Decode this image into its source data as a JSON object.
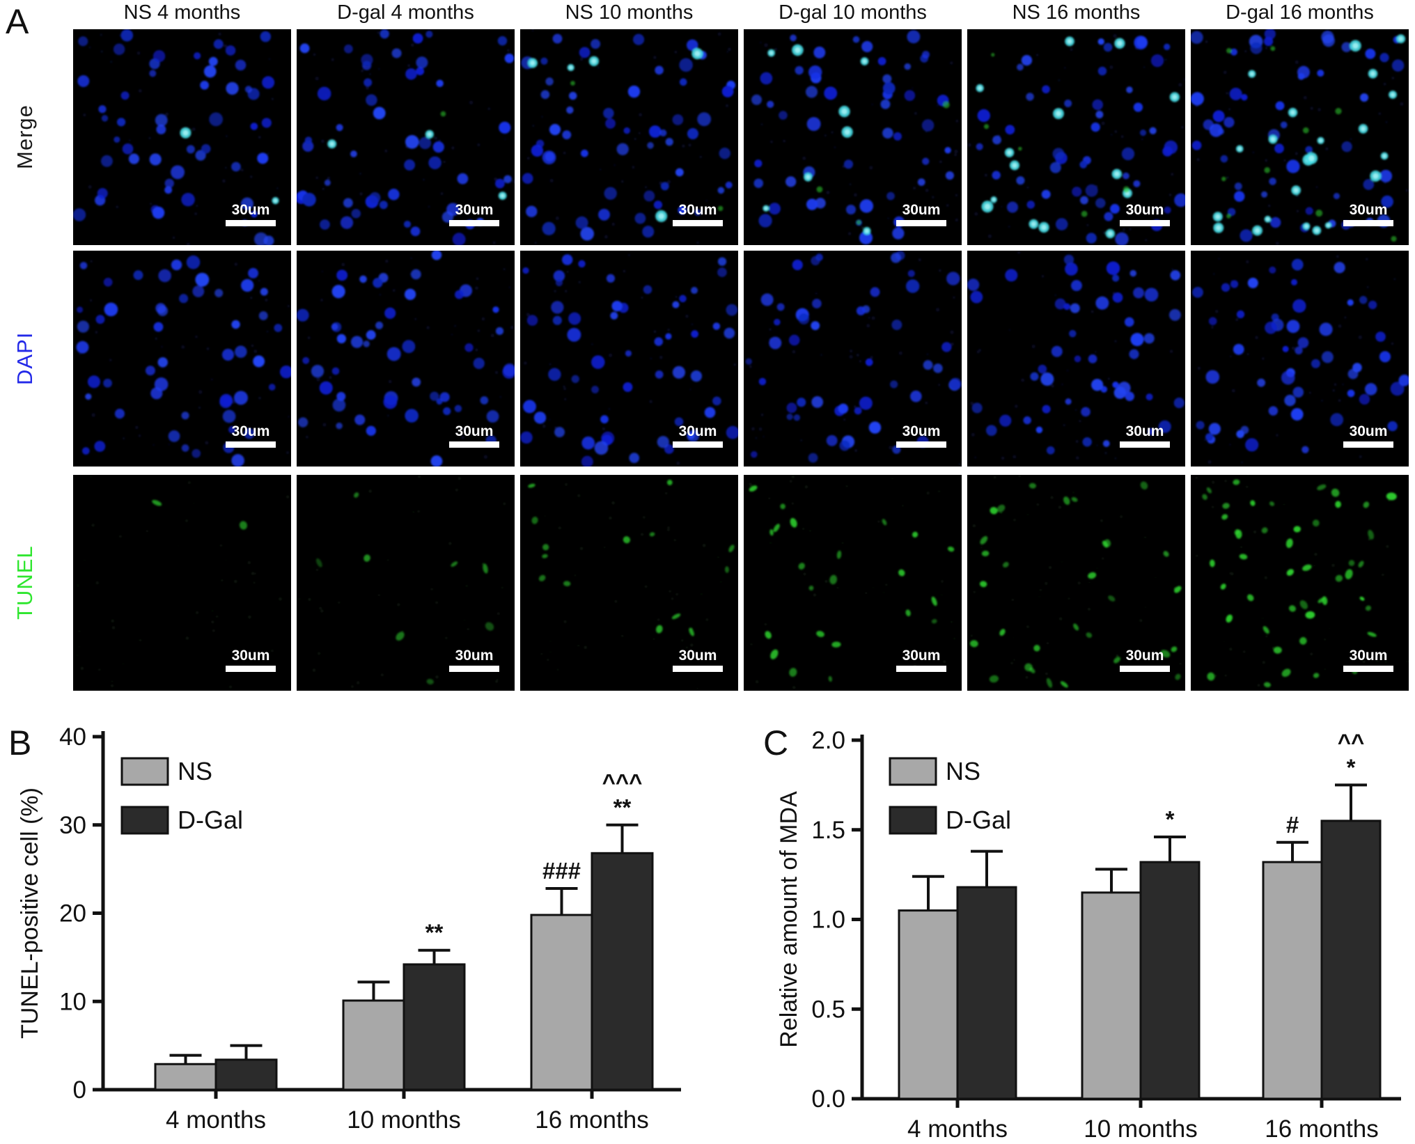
{
  "panel_a": {
    "label": "A",
    "scale_bar_label": "30um",
    "rows": [
      {
        "label": "Merge",
        "label_color": "#1a1a1a",
        "type": "merge"
      },
      {
        "label": "DAPI",
        "label_color": "#2228e8",
        "type": "dapi"
      },
      {
        "label": "TUNEL",
        "label_color": "#2ee62e",
        "type": "tunel"
      }
    ],
    "columns": [
      {
        "title": "NS 4 months",
        "nuclei": 52,
        "merge_cyan": 2,
        "merge_green": 0,
        "tunel_spots": 2,
        "tunel_intensity": 0.85
      },
      {
        "title": "D-gal 4 months",
        "nuclei": 50,
        "merge_cyan": 3,
        "merge_green": 1,
        "tunel_spots": 8,
        "tunel_intensity": 0.7
      },
      {
        "title": "NS 10 months",
        "nuclei": 54,
        "merge_cyan": 5,
        "merge_green": 2,
        "tunel_spots": 14,
        "tunel_intensity": 0.8
      },
      {
        "title": "D-gal 10 months",
        "nuclei": 48,
        "merge_cyan": 8,
        "merge_green": 3,
        "tunel_spots": 22,
        "tunel_intensity": 0.9
      },
      {
        "title": "NS 16 months",
        "nuclei": 50,
        "merge_cyan": 14,
        "merge_green": 5,
        "tunel_spots": 30,
        "tunel_intensity": 0.9
      },
      {
        "title": "D-gal 16 months",
        "nuclei": 52,
        "merge_cyan": 22,
        "merge_green": 9,
        "tunel_spots": 46,
        "tunel_intensity": 1.0
      }
    ],
    "colors": {
      "background": "#000000",
      "dapi_blue": "#1e3cf0",
      "cyan": "#45dfe8",
      "tunel_green": "#2ed32e",
      "scale_bar": "#ffffff"
    }
  },
  "chart_data": [
    {
      "id": "panel_b",
      "panel_label": "B",
      "type": "bar",
      "categories": [
        "4 months",
        "10 months",
        "16 months"
      ],
      "series": [
        {
          "name": "NS",
          "color": "#a8a8a8",
          "values": [
            2.9,
            10.1,
            19.8
          ],
          "errors": [
            1.0,
            2.1,
            3.0
          ],
          "annotations": [
            [],
            [],
            [
              "###"
            ]
          ]
        },
        {
          "name": "D-Gal",
          "color": "#2b2b2b",
          "values": [
            3.4,
            14.2,
            26.8
          ],
          "errors": [
            1.6,
            1.6,
            3.2
          ],
          "annotations": [
            [],
            [
              "**"
            ],
            [
              "^^^",
              "**"
            ]
          ]
        }
      ],
      "title": "",
      "xlabel": "",
      "ylabel": "TUNEL-positive cell (%)",
      "ylim": [
        0,
        40
      ],
      "yticks": [
        0,
        10,
        20,
        30,
        40
      ],
      "ytick_decimals": 0,
      "grid": false,
      "legend_position": "top-left"
    },
    {
      "id": "panel_c",
      "panel_label": "C",
      "type": "bar",
      "categories": [
        "4 months",
        "10 months",
        "16 months"
      ],
      "series": [
        {
          "name": "NS",
          "color": "#a8a8a8",
          "values": [
            1.05,
            1.15,
            1.32
          ],
          "errors": [
            0.19,
            0.13,
            0.11
          ],
          "annotations": [
            [],
            [],
            [
              "#"
            ]
          ]
        },
        {
          "name": "D-Gal",
          "color": "#2b2b2b",
          "values": [
            1.18,
            1.32,
            1.55
          ],
          "errors": [
            0.2,
            0.14,
            0.2
          ],
          "annotations": [
            [],
            [
              "*"
            ],
            [
              "^^",
              "*"
            ]
          ]
        }
      ],
      "title": "",
      "xlabel": "",
      "ylabel": "Relative amount of MDA",
      "ylim": [
        0,
        2.0
      ],
      "yticks": [
        0,
        0.5,
        1.0,
        1.5,
        2.0
      ],
      "ytick_decimals": 1,
      "grid": false,
      "legend_position": "top-left"
    }
  ]
}
